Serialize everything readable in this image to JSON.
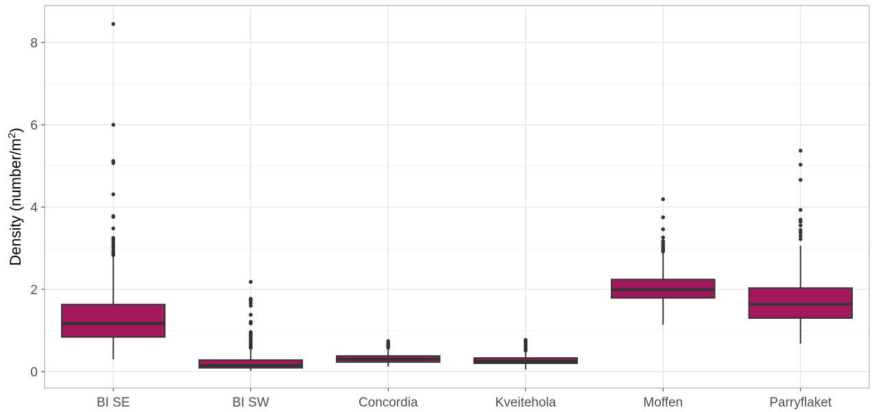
{
  "chart_data": {
    "type": "box",
    "categories": [
      "BI SE",
      "BI SW",
      "Concordia",
      "Kveitehola",
      "Moffen",
      "Parryflaket"
    ],
    "ylabel": "Density (number/m",
    "ylabel_superscript": "2",
    "ylabel_close": ")",
    "xlabel": "",
    "ylim": [
      -0.4,
      8.9
    ],
    "yticks": [
      0,
      2,
      4,
      6,
      8
    ],
    "grid": true,
    "fill_color": "#A3195B",
    "line_color": "#333333",
    "boxes": [
      {
        "category": "BI SE",
        "whisker_low": 0.3,
        "q1": 0.84,
        "median": 1.17,
        "q3": 1.63,
        "whisker_high": 2.8,
        "outliers": [
          8.45,
          6.0,
          5.12,
          5.07,
          4.31,
          3.78,
          3.76,
          3.48,
          3.25,
          3.2,
          3.14,
          3.08,
          3.02,
          2.95,
          2.9,
          2.87,
          2.83
        ]
      },
      {
        "category": "BI SW",
        "whisker_low": 0.02,
        "q1": 0.09,
        "median": 0.15,
        "q3": 0.28,
        "whisker_high": 0.55,
        "outliers": [
          2.18,
          1.77,
          1.73,
          1.67,
          1.6,
          1.38,
          1.21,
          1.17,
          0.96,
          0.92,
          0.88,
          0.82,
          0.77,
          0.72,
          0.67,
          0.63,
          0.6,
          0.58
        ]
      },
      {
        "category": "Concordia",
        "whisker_low": 0.12,
        "q1": 0.23,
        "median": 0.3,
        "q3": 0.38,
        "whisker_high": 0.55,
        "outliers": [
          0.74,
          0.68,
          0.64,
          0.61,
          0.58
        ]
      },
      {
        "category": "Kveitehola",
        "whisker_low": 0.05,
        "q1": 0.2,
        "median": 0.25,
        "q3": 0.33,
        "whisker_high": 0.48,
        "outliers": [
          0.77,
          0.73,
          0.68,
          0.63,
          0.58,
          0.54,
          0.51
        ]
      },
      {
        "category": "Moffen",
        "whisker_low": 1.14,
        "q1": 1.79,
        "median": 1.99,
        "q3": 2.24,
        "whisker_high": 2.9,
        "outliers": [
          4.19,
          3.75,
          3.46,
          3.26,
          3.17,
          3.12,
          3.07,
          3.02,
          2.98,
          2.94,
          2.92
        ]
      },
      {
        "category": "Parryflaket",
        "whisker_low": 0.68,
        "q1": 1.3,
        "median": 1.64,
        "q3": 2.03,
        "whisker_high": 3.06,
        "outliers": [
          5.37,
          5.03,
          4.66,
          3.93,
          3.69,
          3.64,
          3.55,
          3.44,
          3.38,
          3.3,
          3.22
        ]
      }
    ]
  }
}
